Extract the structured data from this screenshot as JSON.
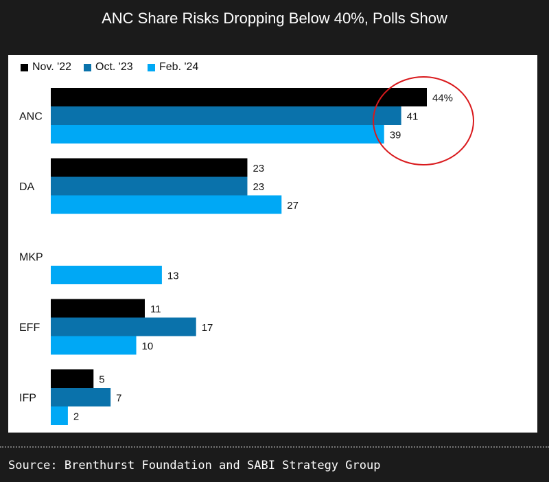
{
  "title": "ANC Share Risks Dropping Below 40%, Polls Show",
  "source": "Source: Brenthurst Foundation and SABI Strategy Group",
  "chart_data": {
    "type": "bar",
    "orientation": "horizontal",
    "categories": [
      "ANC",
      "DA",
      "MKP",
      "EFF",
      "IFP"
    ],
    "series": [
      {
        "name": "Nov. '22",
        "color": "#000000",
        "values": [
          44,
          23,
          null,
          11,
          5
        ]
      },
      {
        "name": "Oct. '23",
        "color": "#0a72ab",
        "values": [
          41,
          23,
          null,
          17,
          7
        ]
      },
      {
        "name": "Feb. '24",
        "color": "#00a8f5",
        "values": [
          39,
          27,
          13,
          10,
          2
        ]
      }
    ],
    "first_label_suffix": "%",
    "legend": "top-left",
    "annotation": {
      "type": "circle",
      "target": "ANC",
      "color": "#d9191c"
    },
    "xlim": [
      0,
      44
    ]
  }
}
